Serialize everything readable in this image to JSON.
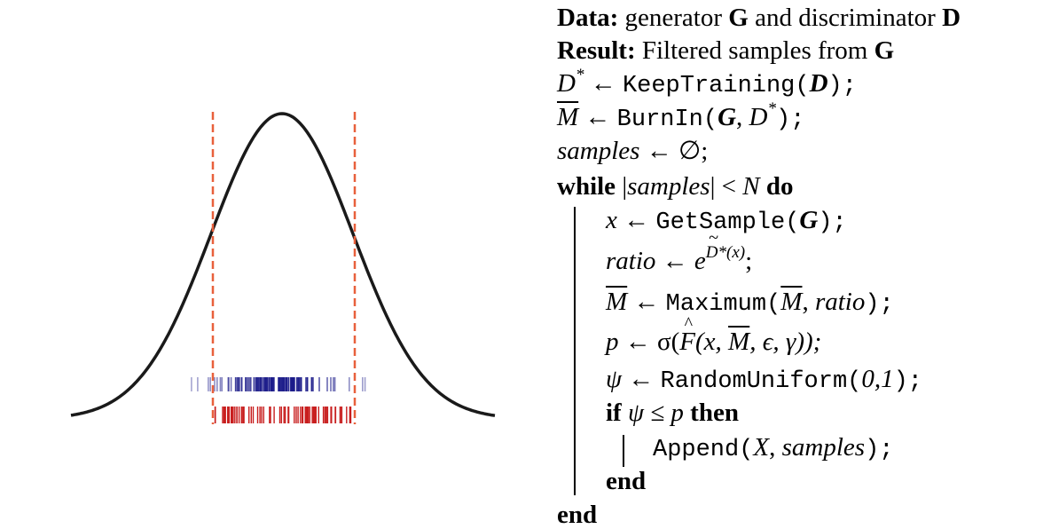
{
  "colors": {
    "curve": "#1a1a1a",
    "threshold": "#e8603c",
    "accepted_ticks": "#c81e1e",
    "all_ticks": "#1c1c8a"
  },
  "figure": {
    "description_type": "gaussian-with-rejection-window"
  },
  "algorithm": {
    "data_kw": "Data:",
    "data_text_1": " generator ",
    "data_G": "G",
    "data_text_2": " and discriminator ",
    "data_D": "D",
    "result_kw": "Result:",
    "result_text": " Filtered samples from ",
    "result_G": "G",
    "l1_lhs": "D",
    "l1_sup": "*",
    "l1_arrow": " ← ",
    "l1_fn": "KeepTraining(",
    "l1_arg": "D",
    "l1_end": ");",
    "l2_lhs": "M",
    "l2_arrow": " ← ",
    "l2_fn": "BurnIn(",
    "l2_arg1": "G",
    "l2_sep": ", ",
    "l2_arg2": "D",
    "l2_sup": "*",
    "l2_end": ");",
    "l3_lhs": "samples",
    "l3_rhs": " ← ∅;",
    "while_kw": "while",
    "while_cond_1": " |",
    "while_cond_var": "samples",
    "while_cond_2": "| < ",
    "while_cond_N": "N",
    "do_kw": " do",
    "w1_lhs": "x",
    "w1_arrow": " ← ",
    "w1_fn": "GetSample(",
    "w1_arg": "G",
    "w1_end": ");",
    "w2_lhs": "ratio",
    "w2_arrow": " ← ",
    "w2_e": "e",
    "w2_sup": "D",
    "w2_sup_star": "*",
    "w2_sup_x": "(x)",
    "w2_end": ";",
    "w3_lhs": "M",
    "w3_arrow": " ← ",
    "w3_fn": "Maximum(",
    "w3_arg1": "M",
    "w3_sep": ", ",
    "w3_arg2": "ratio",
    "w3_end": ");",
    "w4_lhs": "p",
    "w4_arrow": " ← σ(",
    "w4_F": "F",
    "w4_args_1": "(x, ",
    "w4_M": "M",
    "w4_args_2": ", ϵ, γ));",
    "w5_lhs": "ψ",
    "w5_arrow": " ← ",
    "w5_fn": "RandomUniform(",
    "w5_arg": "0,1",
    "w5_end": ");",
    "if_kw": "if",
    "if_cond": " ψ ≤ p ",
    "then_kw": "then",
    "a_fn": "Append(",
    "a_arg1": "X",
    "a_sep": ", ",
    "a_arg2": "samples",
    "a_end": ");",
    "end_if": "end",
    "end_while": "end"
  }
}
